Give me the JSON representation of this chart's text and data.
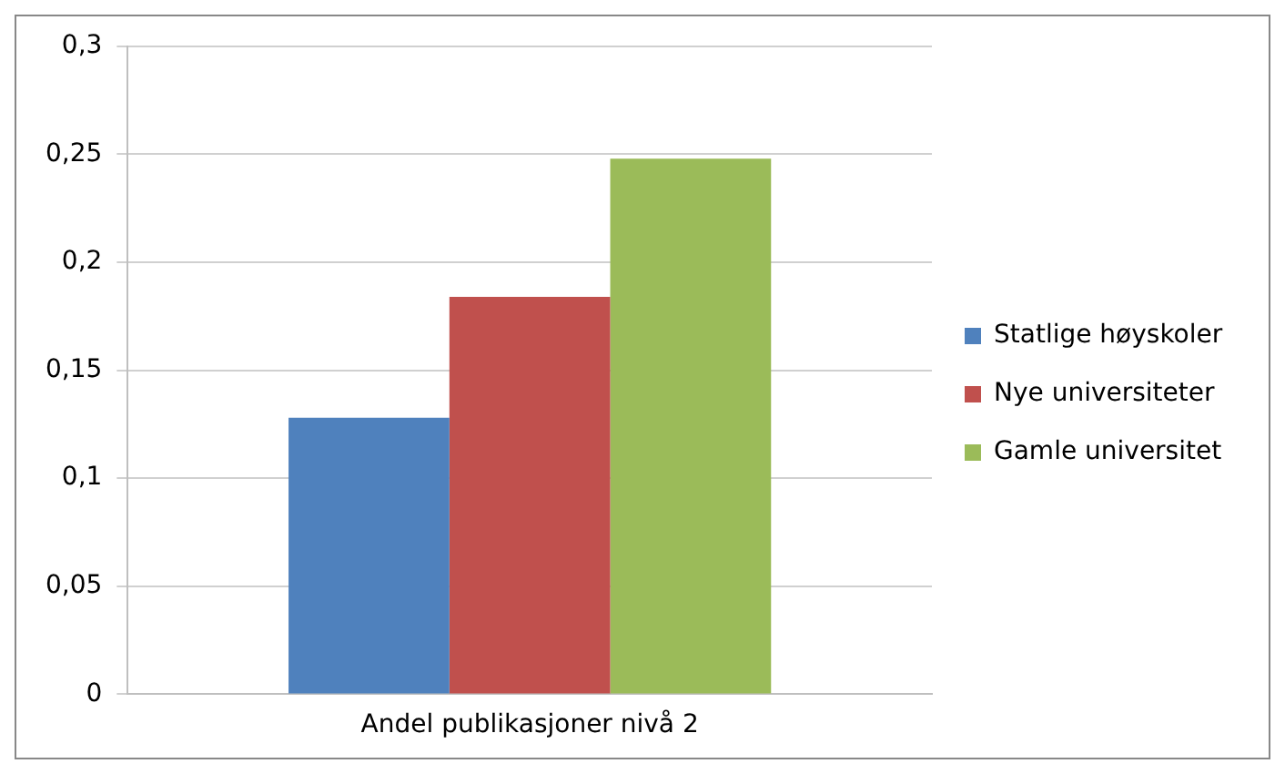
{
  "chart_data": {
    "type": "bar",
    "categories": [
      "Andel publikasjoner nivå 2"
    ],
    "series": [
      {
        "name": "Statlige høyskoler",
        "color": "#4f81bd",
        "values": [
          0.128
        ]
      },
      {
        "name": "Nye universiteter",
        "color": "#c0504d",
        "values": [
          0.184
        ]
      },
      {
        "name": "Gamle universitet",
        "color": "#9bbb59",
        "values": [
          0.248
        ]
      }
    ],
    "ylim": [
      0,
      0.3
    ],
    "yticks": [
      0,
      {
        "value": 0.05,
        "label": "0,05"
      },
      {
        "value": 0.1,
        "label": "0,1"
      },
      {
        "value": 0.15,
        "label": "0,15"
      },
      {
        "value": 0.2,
        "label": "0,2"
      },
      {
        "value": 0.25,
        "label": "0,25"
      },
      {
        "value": 0.3,
        "label": "0,3"
      }
    ],
    "grid": "y",
    "legend": "right"
  }
}
